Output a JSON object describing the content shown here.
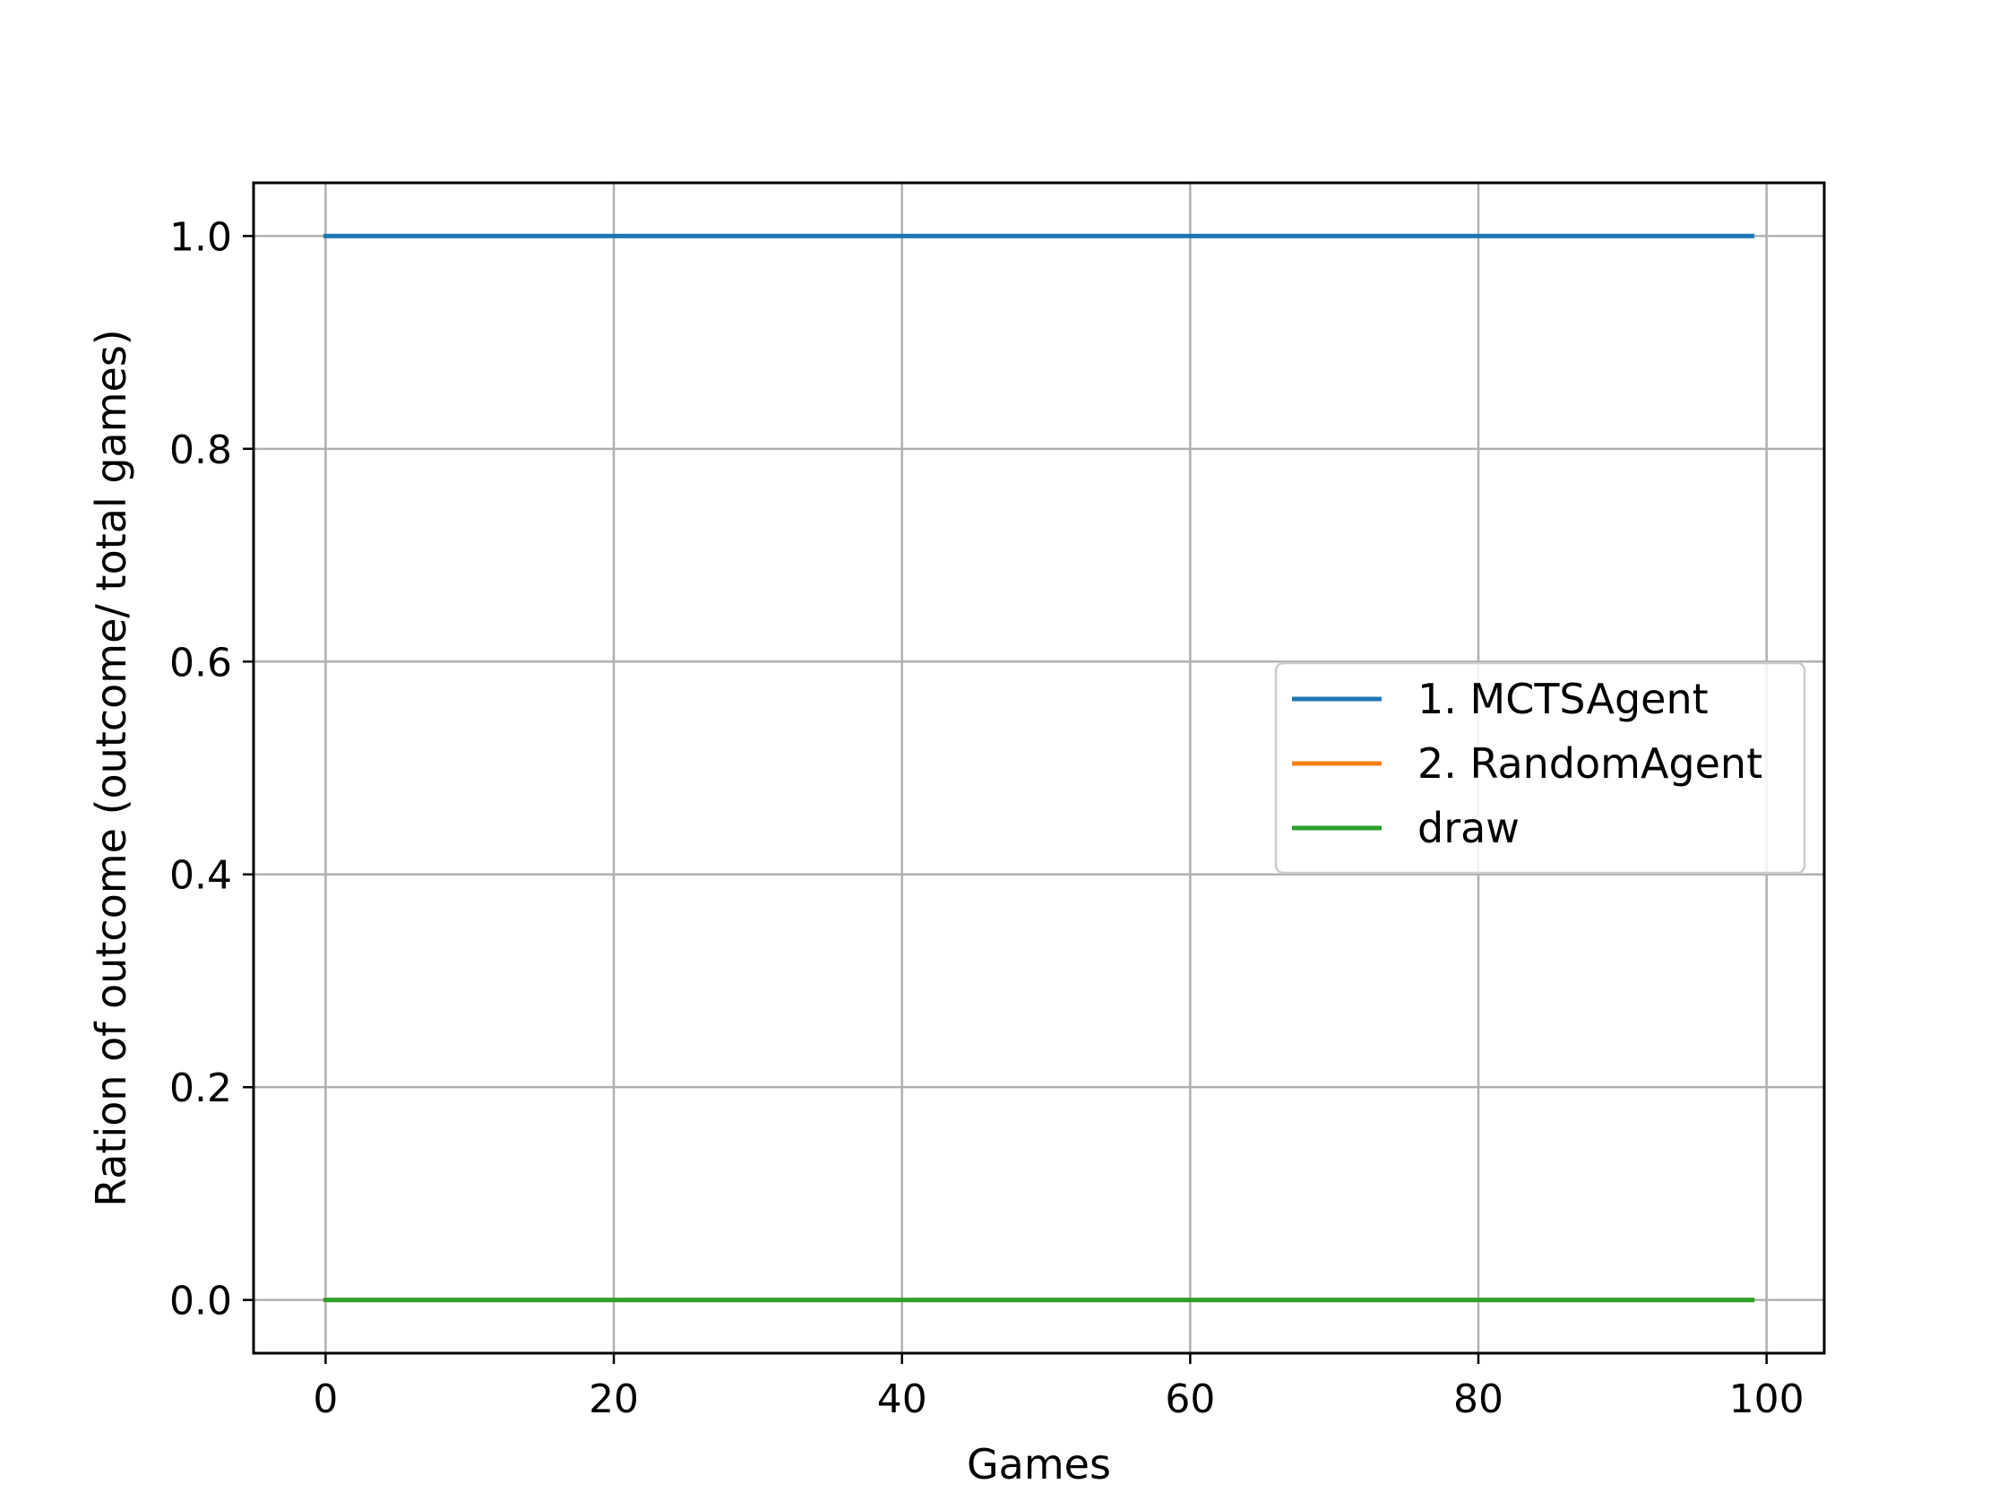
{
  "chart_data": {
    "type": "line",
    "title": "",
    "xlabel": "Games",
    "ylabel": "Ration of outcome (outcome/ total games)",
    "xlim": [
      -5,
      104
    ],
    "ylim": [
      -0.05,
      1.05
    ],
    "x_ticks": [
      0,
      20,
      40,
      60,
      80,
      100
    ],
    "x_tick_labels": [
      "0",
      "20",
      "40",
      "60",
      "80",
      "100"
    ],
    "y_ticks": [
      0.0,
      0.2,
      0.4,
      0.6,
      0.8,
      1.0
    ],
    "y_tick_labels": [
      "0.0",
      "0.2",
      "0.4",
      "0.6",
      "0.8",
      "1.0"
    ],
    "grid": true,
    "legend_position": "center-right",
    "x": [
      0,
      99
    ],
    "series": [
      {
        "name": "1. MCTSAgent",
        "color": "#1f77b4",
        "values": [
          1.0,
          1.0
        ]
      },
      {
        "name": "2. RandomAgent",
        "color": "#ff7f0e",
        "values": [
          0.0,
          0.0
        ]
      },
      {
        "name": "draw",
        "color": "#2ca02c",
        "values": [
          0.0,
          0.0
        ]
      }
    ]
  }
}
